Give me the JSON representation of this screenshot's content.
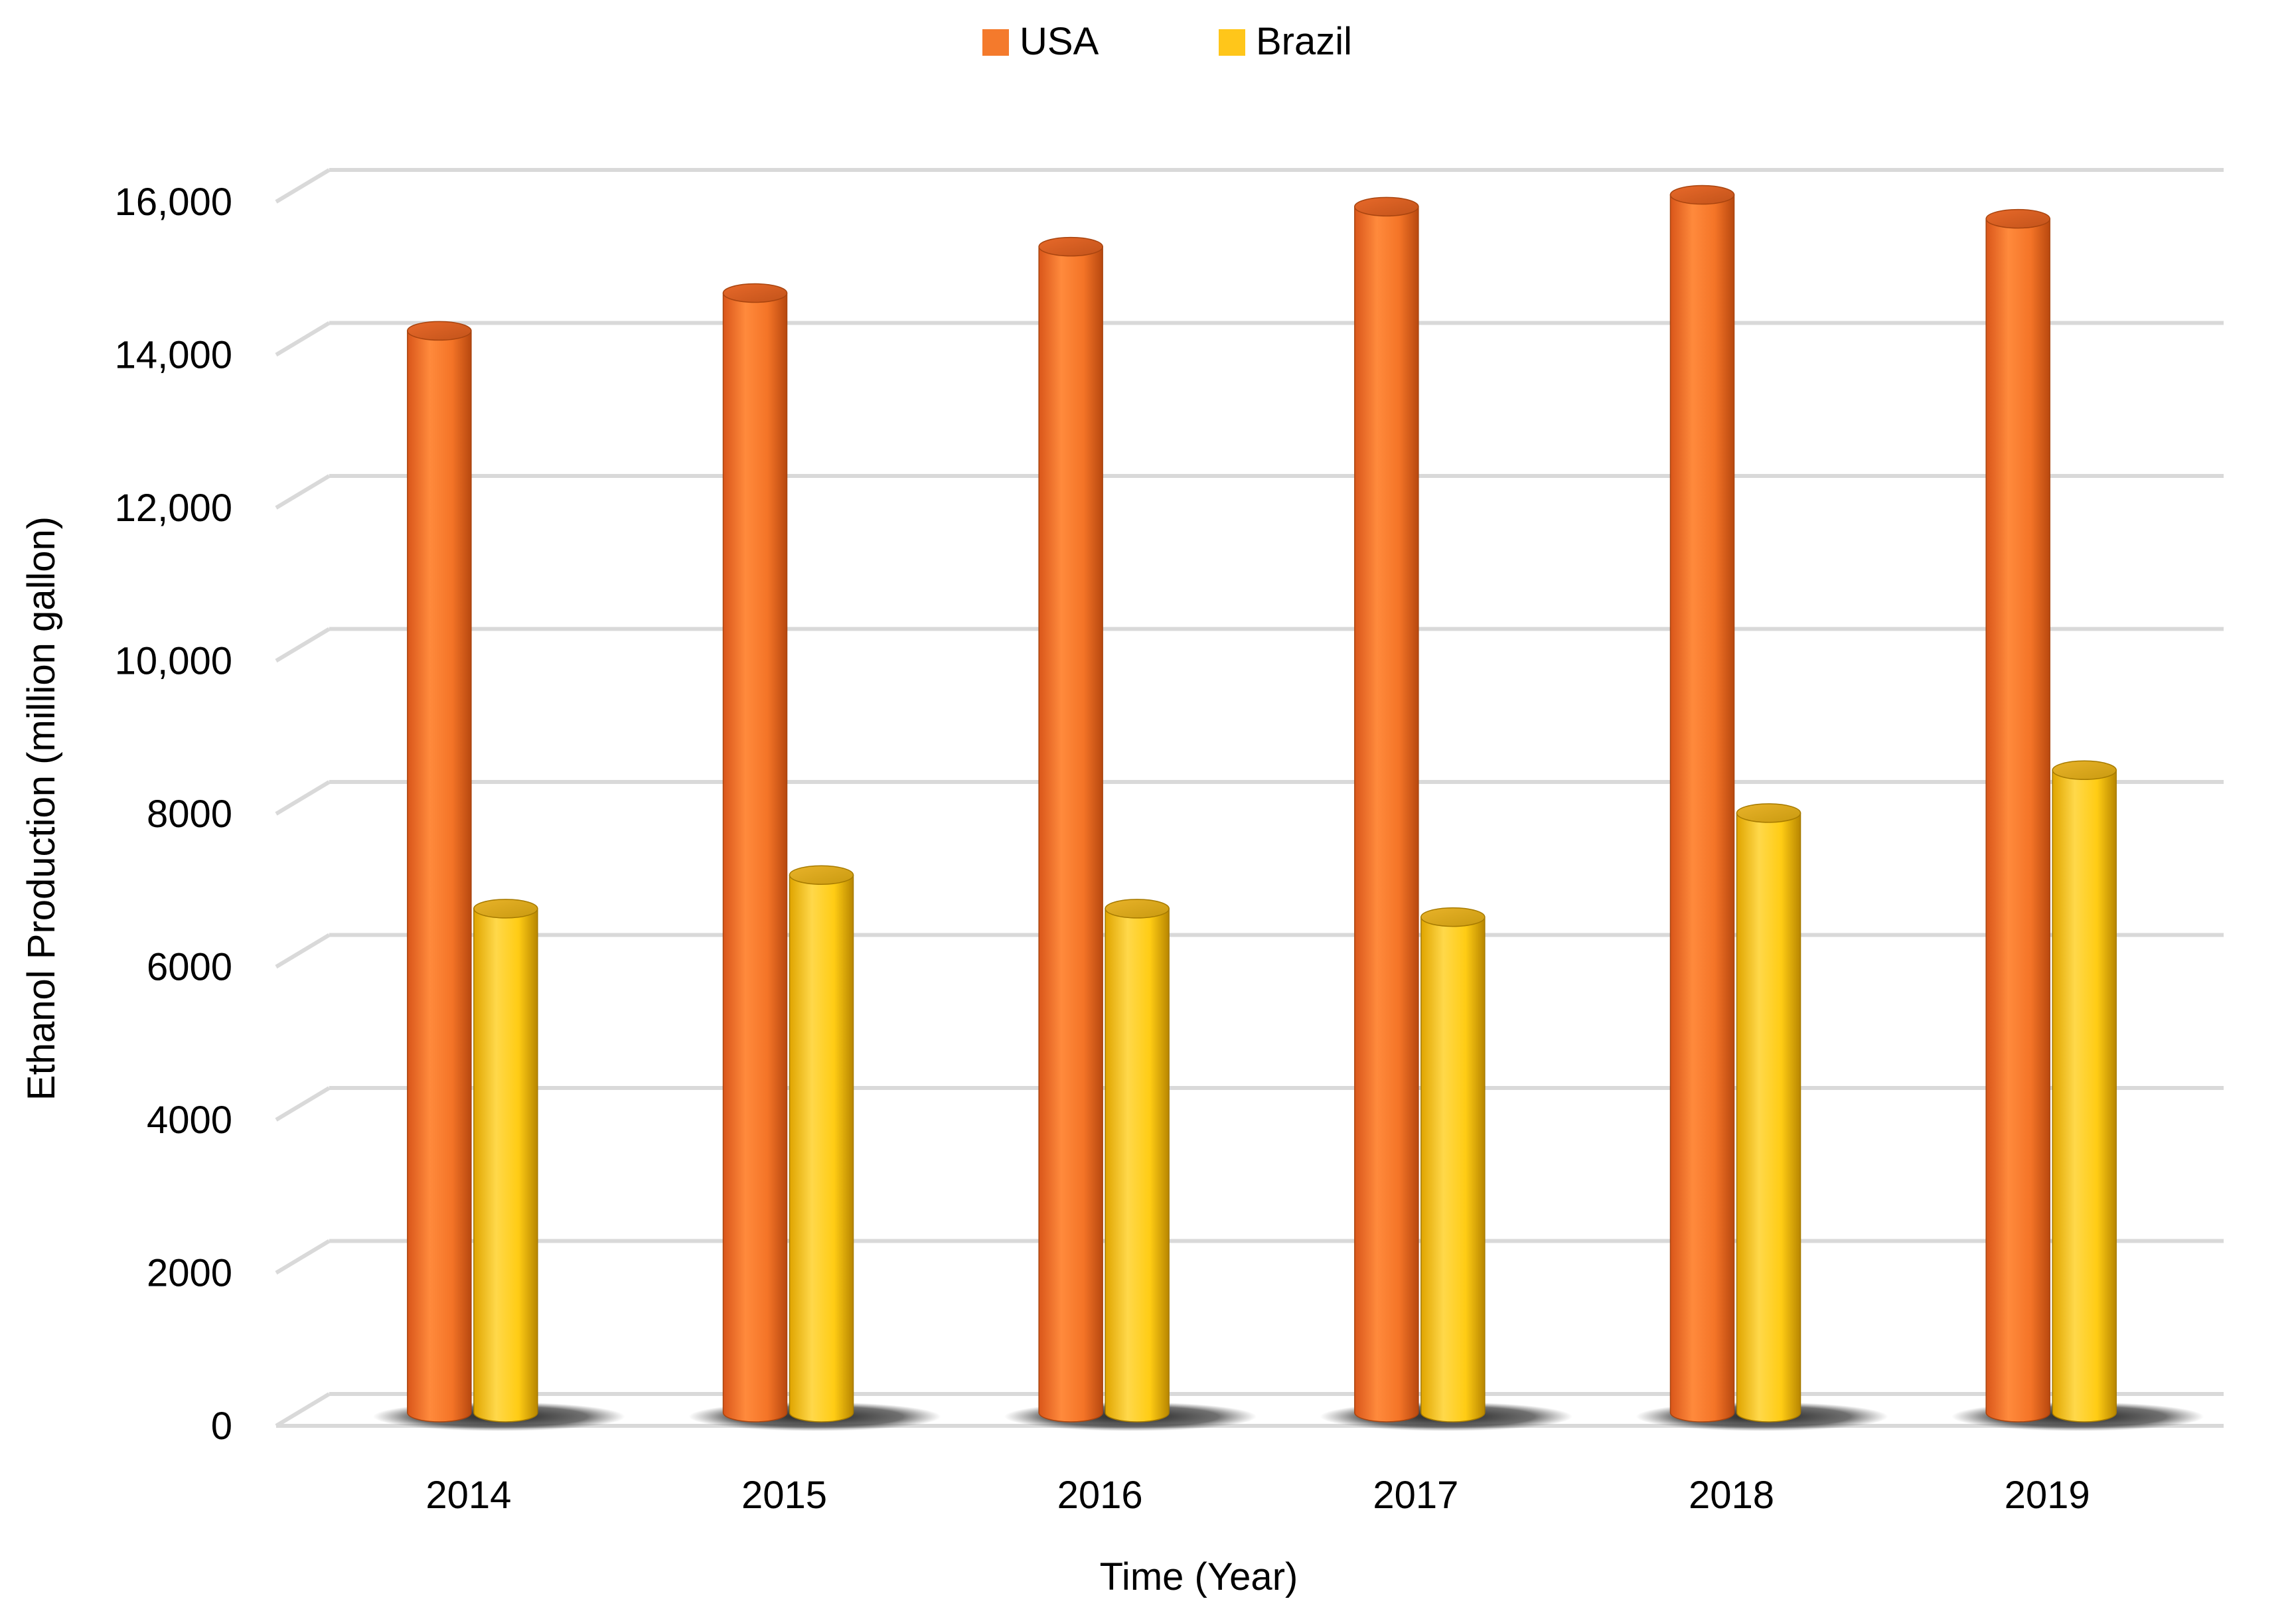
{
  "chart_data": {
    "type": "bar",
    "style": "3d-cylinder",
    "title": "",
    "xlabel": "Time (Year)",
    "ylabel": "Ethanol Production (million gallon)",
    "ylim": [
      0,
      16000
    ],
    "grid": true,
    "legend_position": "top-center",
    "categories": [
      "2014",
      "2015",
      "2016",
      "2017",
      "2018",
      "2019"
    ],
    "series": [
      {
        "name": "USA",
        "color": "#f47a2c",
        "values": [
          14313,
          14807,
          15413,
          15936,
          16091,
          15778
        ]
      },
      {
        "name": "Brazil",
        "color": "#ffc61a",
        "values": [
          6760,
          7200,
          6760,
          6650,
          8010,
          8570
        ]
      }
    ],
    "y_ticks": [
      {
        "value": 0,
        "label": "0"
      },
      {
        "value": 2000,
        "label": "2000"
      },
      {
        "value": 4000,
        "label": "4000"
      },
      {
        "value": 6000,
        "label": "6000"
      },
      {
        "value": 8000,
        "label": "8000"
      },
      {
        "value": 10000,
        "label": "10,000"
      },
      {
        "value": 12000,
        "label": "12,000"
      },
      {
        "value": 14000,
        "label": "14,000"
      },
      {
        "value": 16000,
        "label": "16,000"
      }
    ]
  }
}
